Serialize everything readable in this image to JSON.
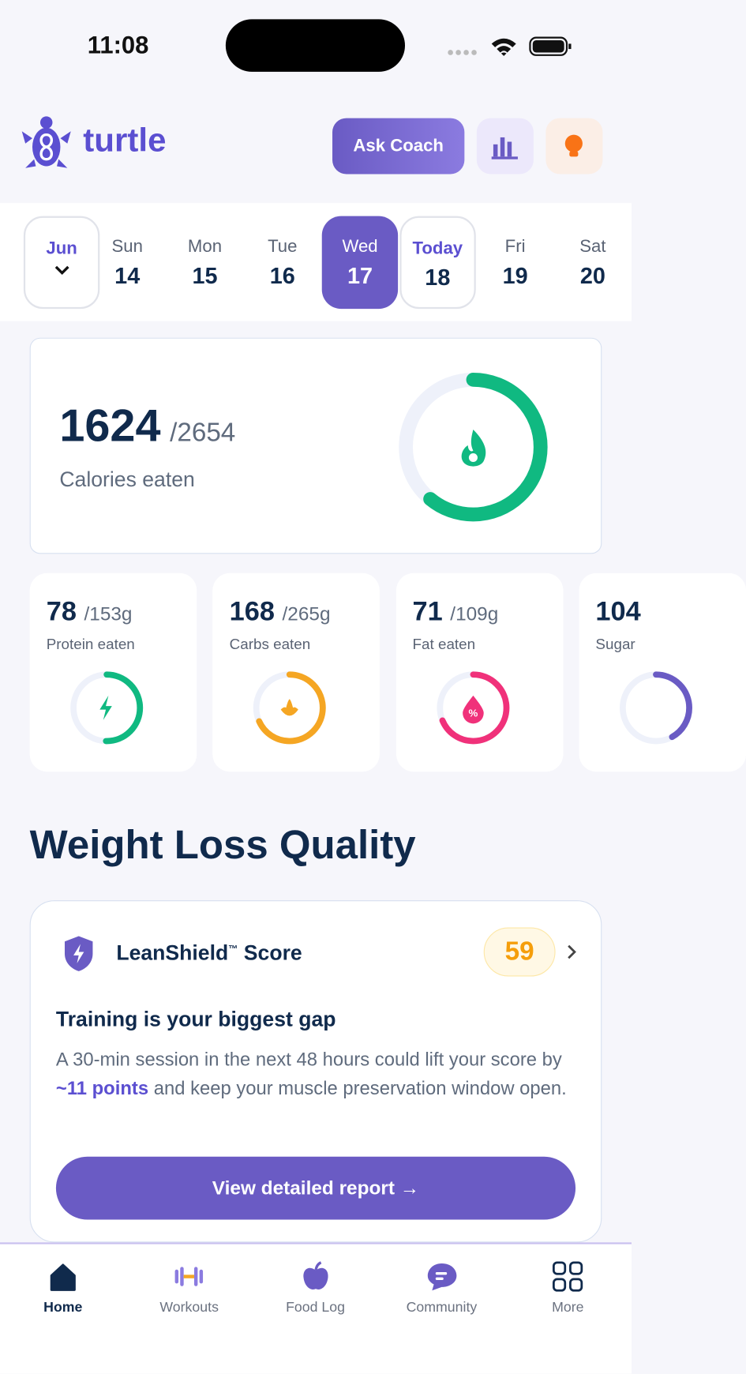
{
  "status_bar": {
    "time": "11:08"
  },
  "header": {
    "brand": "turtle",
    "ask_button": "Ask Coach"
  },
  "date_strip": {
    "month": "Jun",
    "days": [
      {
        "label": "Sun",
        "number": "14"
      },
      {
        "label": "Mon",
        "number": "15"
      },
      {
        "label": "Tue",
        "number": "16"
      },
      {
        "label": "Wed",
        "number": "17"
      },
      {
        "label": "Today",
        "number": "18"
      },
      {
        "label": "Fri",
        "number": "19"
      },
      {
        "label": "Sat",
        "number": "20"
      }
    ]
  },
  "calories": {
    "eaten": "1624",
    "goal": "/2654",
    "label": "Calories eaten"
  },
  "macros": [
    {
      "eaten": "78",
      "goal": "/153g",
      "label": "Protein eaten"
    },
    {
      "eaten": "168",
      "goal": "/265g",
      "label": "Carbs eaten"
    },
    {
      "eaten": "71",
      "goal": "/109g",
      "label": "Fat eaten"
    },
    {
      "eaten": "104",
      "label": "Sugar"
    }
  ],
  "section_title": "Weight Loss Quality",
  "lean_card": {
    "title": "LeanShield",
    "trademark": "™",
    "title_rest": " Score",
    "score": "59",
    "headline": "Training is your biggest gap",
    "text_before": "A 30-min session in the next 48 hours could lift your score by ",
    "highlight": "~11 points",
    "text_after": " and keep your muscle preservation window open.",
    "button": "View detailed report →"
  },
  "nav": [
    {
      "label": "Home"
    },
    {
      "label": "Workouts"
    },
    {
      "label": "Food Log"
    },
    {
      "label": "Community"
    },
    {
      "label": "More"
    }
  ]
}
